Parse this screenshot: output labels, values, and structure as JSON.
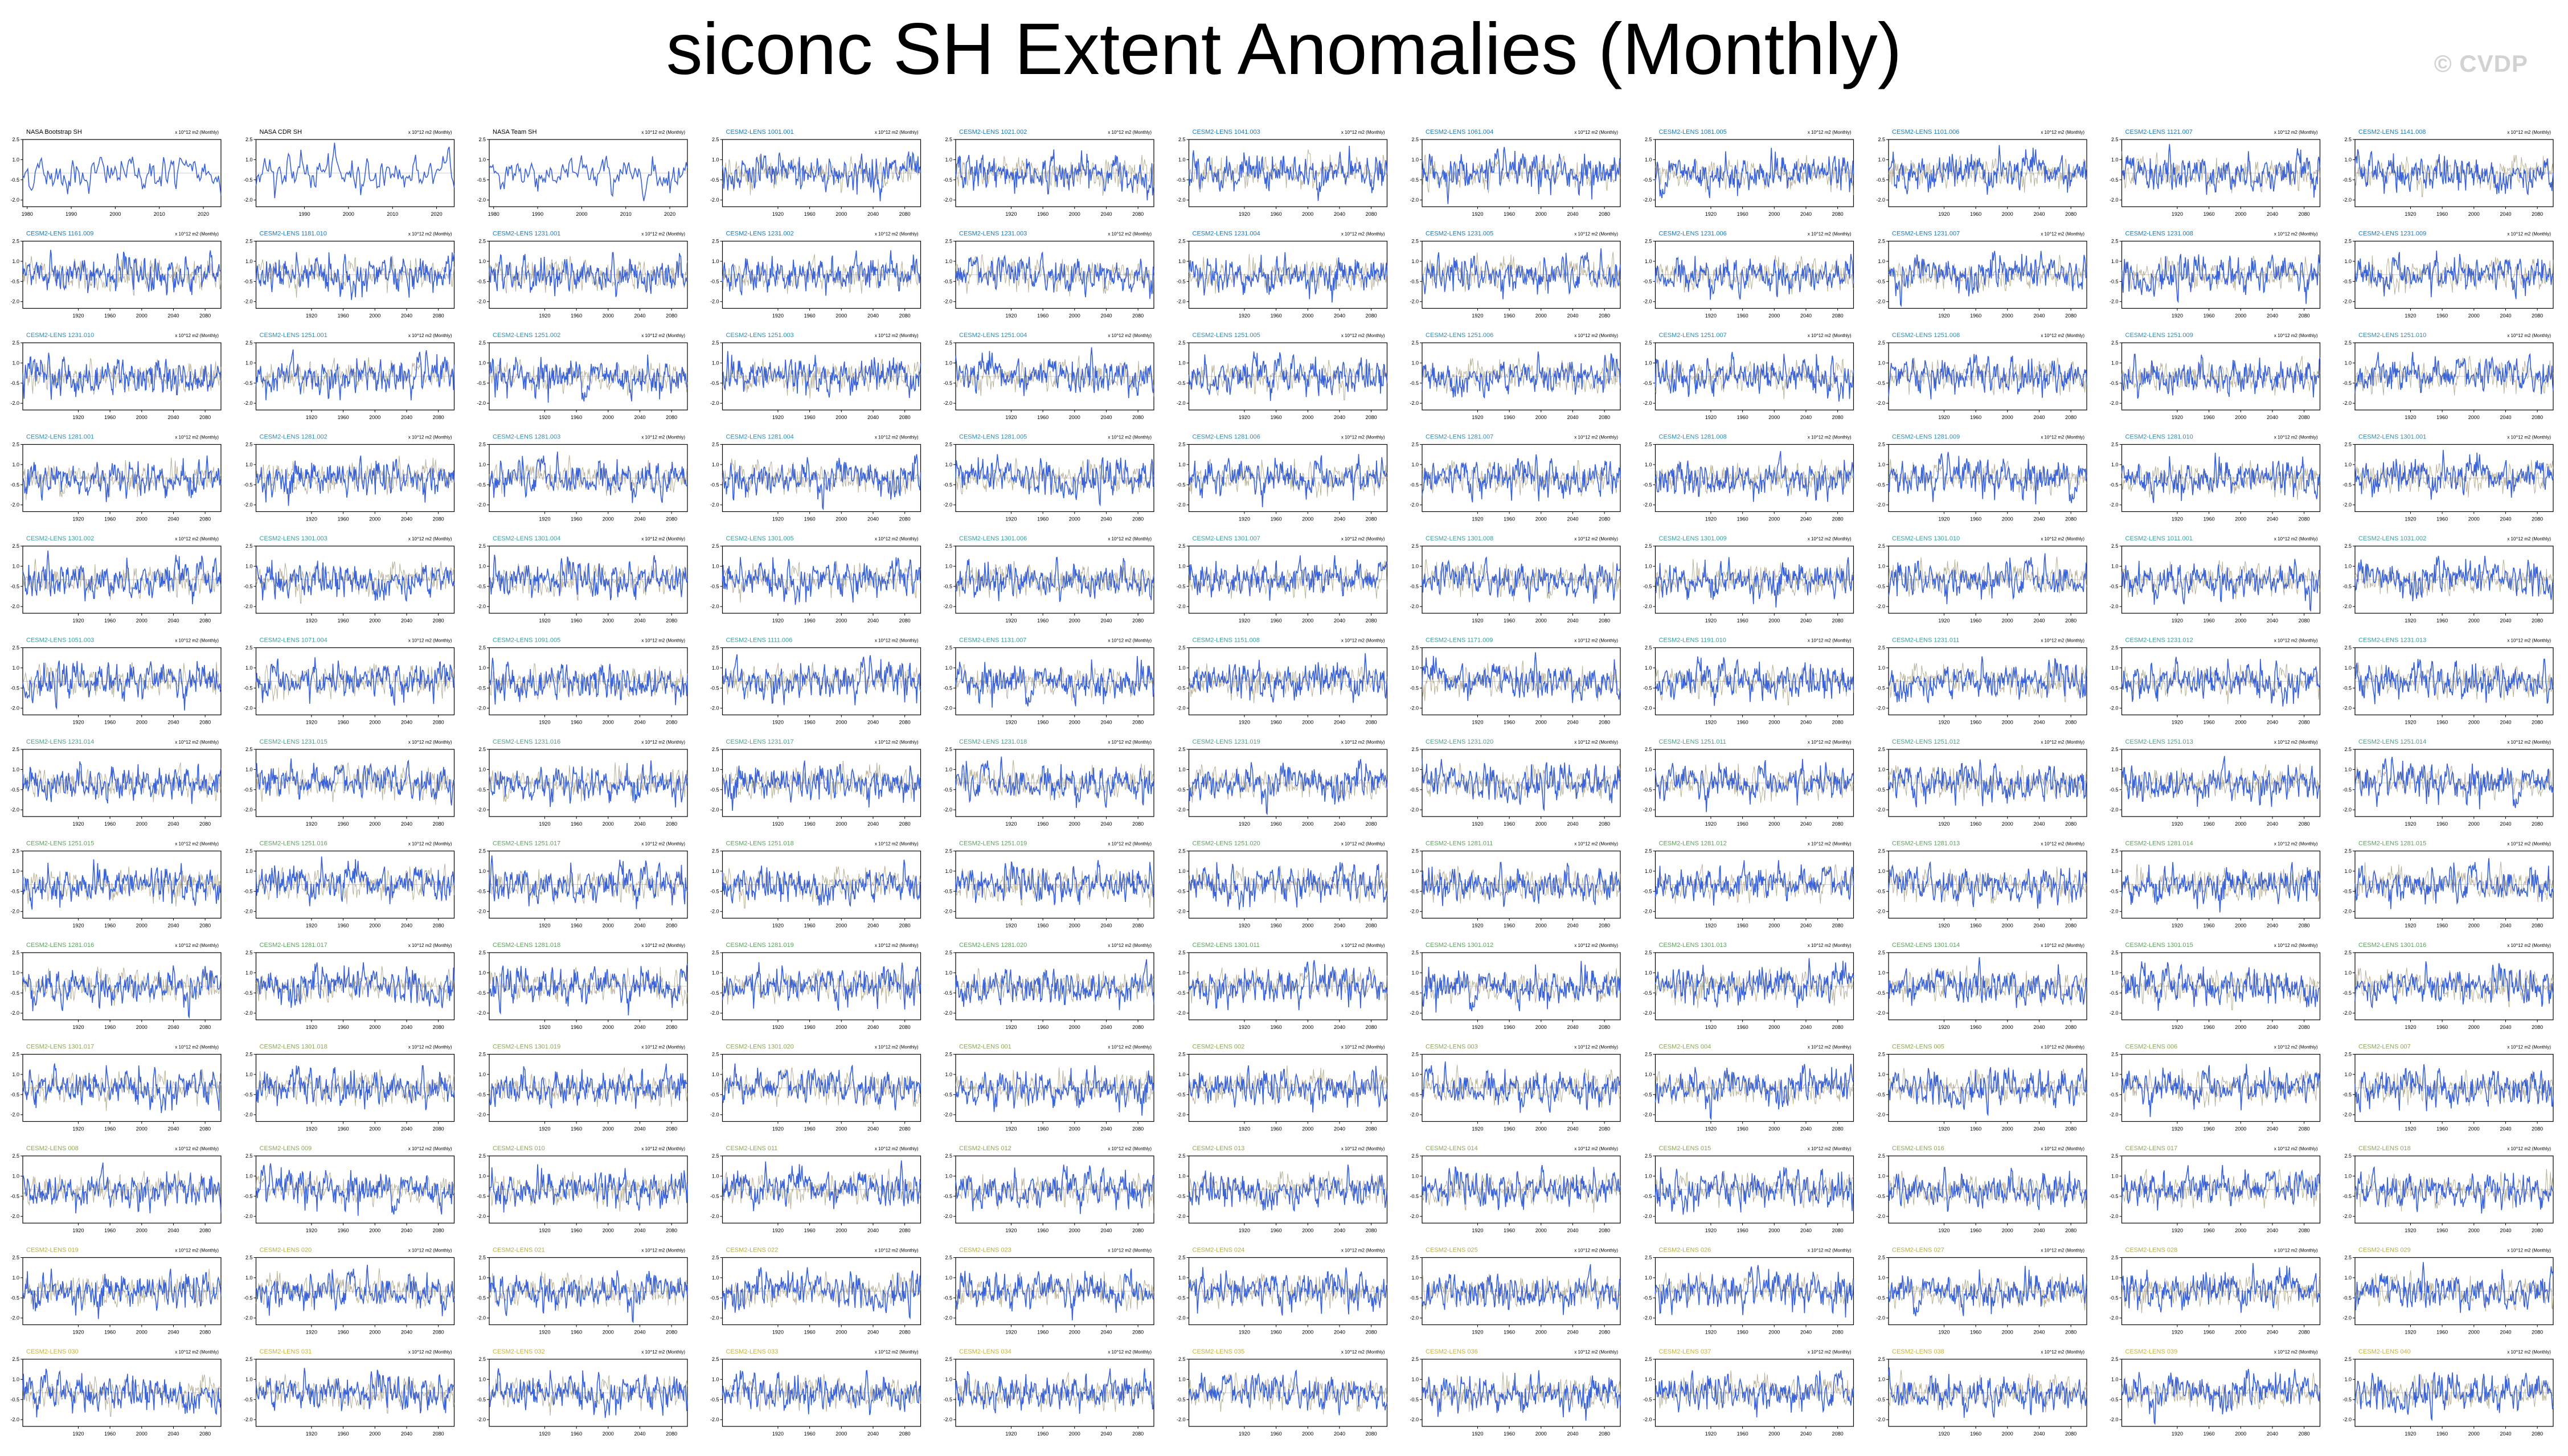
{
  "title": "siconc SH Extent Anomalies (Monthly)",
  "watermark": "© CVDP",
  "colors": {
    "series": "#3a62d9",
    "secondary": "#9a8f6a",
    "frame": "#000000"
  },
  "chart_data": {
    "type": "line",
    "layout": "small-multiples",
    "rows": 13,
    "cols": 11,
    "units": "x 10^12 m2 (Monthly)",
    "ylim": [
      -2.5,
      2.5
    ],
    "yticks": [
      "2.5",
      "1.0",
      "-0.5",
      "-2.0"
    ],
    "obs_panels": [
      {
        "title": "NASA Bootstrap SH",
        "xlim": [
          1979,
          2024
        ],
        "xticks": [
          "1980",
          "1990",
          "2000",
          "2010",
          "2020"
        ]
      },
      {
        "title": "NASA CDR SH",
        "xlim": [
          1979,
          2024
        ],
        "xticks": [
          "1990",
          "2000",
          "2010",
          "2020"
        ]
      },
      {
        "title": "NASA Team SH",
        "xlim": [
          1979,
          2024
        ],
        "xticks": [
          "1980",
          "1990",
          "2000",
          "2010",
          "2020"
        ]
      }
    ],
    "model_panel": {
      "title_prefix": "CESM2-LENS",
      "xlim": [
        1850,
        2100
      ],
      "xticks": [
        "1920",
        "1960",
        "2000",
        "2040",
        "2080"
      ]
    },
    "title_colors": [
      "#1f77b4",
      "#2a8fb8",
      "#3aa0a0",
      "#4aa080",
      "#60a060",
      "#8aa855",
      "#b8b040",
      "#c8b040"
    ],
    "members": [
      "1001.001",
      "1021.002",
      "1041.003",
      "1061.004",
      "1081.005",
      "1101.006",
      "1121.007",
      "1141.008",
      "1161.009",
      "1181.010",
      "1231.001",
      "1231.002",
      "1231.003",
      "1231.004",
      "1231.005",
      "1231.006",
      "1231.007",
      "1231.008",
      "1231.009",
      "1231.010",
      "1251.001",
      "1251.002",
      "1251.003",
      "1251.004",
      "1251.005",
      "1251.006",
      "1251.007",
      "1251.008",
      "1251.009",
      "1251.010",
      "1281.001",
      "1281.002",
      "1281.003",
      "1281.004",
      "1281.005",
      "1281.006",
      "1281.007",
      "1281.008",
      "1281.009",
      "1281.010",
      "1301.001",
      "1301.002",
      "1301.003",
      "1301.004",
      "1301.005",
      "1301.006",
      "1301.007",
      "1301.008",
      "1301.009",
      "1301.010",
      "1011.001",
      "1031.002",
      "1051.003",
      "1071.004",
      "1091.005",
      "1111.006",
      "1131.007",
      "1151.008",
      "1171.009",
      "1191.010",
      "1231.011",
      "1231.012",
      "1231.013",
      "1231.014",
      "1231.015",
      "1231.016",
      "1231.017",
      "1231.018",
      "1231.019",
      "1231.020",
      "1251.011",
      "1251.012",
      "1251.013",
      "1251.014",
      "1251.015",
      "1251.016",
      "1251.017",
      "1251.018",
      "1251.019",
      "1251.020",
      "1281.011",
      "1281.012",
      "1281.013",
      "1281.014",
      "1281.015",
      "1281.016",
      "1281.017",
      "1281.018",
      "1281.019",
      "1281.020",
      "1301.011",
      "1301.012",
      "1301.013",
      "1301.014",
      "1301.015",
      "1301.016",
      "1301.017",
      "1301.018",
      "1301.019",
      "1301.020",
      "001",
      "002",
      "003",
      "004",
      "005",
      "006",
      "007",
      "008",
      "009",
      "010",
      "011",
      "012",
      "013",
      "014",
      "015",
      "016",
      "017",
      "018",
      "019",
      "020",
      "021",
      "022",
      "023",
      "024",
      "025",
      "026",
      "027",
      "028",
      "029",
      "030",
      "031",
      "032",
      "033",
      "034",
      "035",
      "036",
      "037",
      "038",
      "039",
      "040"
    ]
  }
}
